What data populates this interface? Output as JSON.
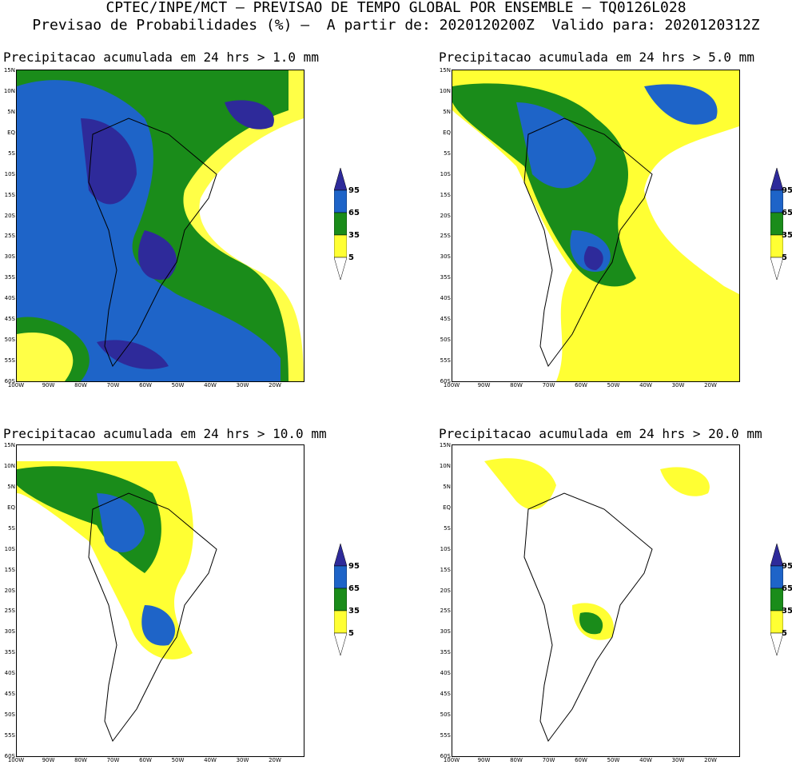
{
  "header": {
    "line1": "CPTEC/INPE/MCT – PREVISAO DE TEMPO GLOBAL POR ENSEMBLE – TQ0126L028",
    "line2": "Previsao de Probabilidades (%) –  A partir de: 2020120200Z  Valido para: 2020120312Z"
  },
  "axes": {
    "lat_labels": [
      "15N",
      "10N",
      "5N",
      "EQ",
      "5S",
      "10S",
      "15S",
      "20S",
      "25S",
      "30S",
      "35S",
      "40S",
      "45S",
      "50S",
      "55S",
      "60S"
    ],
    "lon_labels": [
      "100W",
      "90W",
      "80W",
      "70W",
      "60W",
      "50W",
      "40W",
      "30W",
      "20W"
    ]
  },
  "legend": {
    "levels": [
      "95",
      "65",
      "35",
      "5"
    ],
    "colors": {
      "c95": "#2e2a9a",
      "c65": "#1e64c8",
      "c35": "#1a8c1a",
      "c5": "#ffff33",
      "c0": "#ffffff"
    }
  },
  "panels": [
    {
      "title": "Precipitacao acumulada em 24 hrs > 1.0 mm"
    },
    {
      "title": "Precipitacao acumulada em 24 hrs > 5.0 mm"
    },
    {
      "title": "Precipitacao acumulada em 24 hrs > 10.0 mm"
    },
    {
      "title": "Precipitacao acumulada em 24 hrs > 20.0 mm"
    }
  ]
}
